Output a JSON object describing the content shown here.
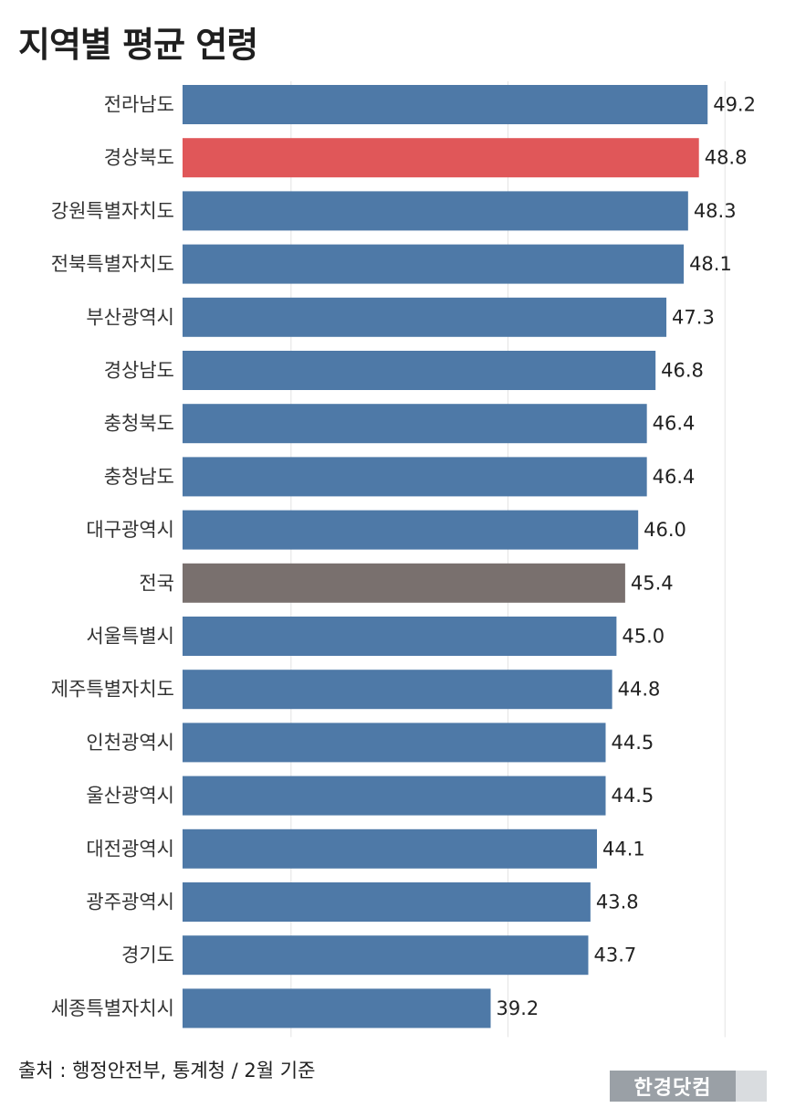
{
  "header": {
    "title": "지역별 평균 연령"
  },
  "colors": {
    "default": "#4e79a7",
    "highlight": "#e05759",
    "national": "#79706e",
    "grid": "#e3e3e3"
  },
  "chart_data": {
    "type": "bar",
    "orientation": "horizontal",
    "title": "지역별 평균 연령",
    "xlabel": "",
    "ylabel": "",
    "xlim": [
      25,
      51
    ],
    "grid": true,
    "categories": [
      "전라남도",
      "경상북도",
      "강원특별자치도",
      "전북특별자치도",
      "부산광역시",
      "경상남도",
      "충청북도",
      "충청남도",
      "대구광역시",
      "전국",
      "서울특별시",
      "제주특별자치도",
      "인천광역시",
      "울산광역시",
      "대전광역시",
      "광주광역시",
      "경기도",
      "세종특별자치시"
    ],
    "values": [
      49.2,
      48.8,
      48.3,
      48.1,
      47.3,
      46.8,
      46.4,
      46.4,
      46.0,
      45.4,
      45.0,
      44.8,
      44.5,
      44.5,
      44.1,
      43.8,
      43.7,
      39.2
    ],
    "value_labels": [
      "49.2",
      "48.8",
      "48.3",
      "48.1",
      "47.3",
      "46.8",
      "46.4",
      "46.4",
      "46.0",
      "45.4",
      "45.0",
      "44.8",
      "44.5",
      "44.5",
      "44.1",
      "43.8",
      "43.7",
      "39.2"
    ],
    "highlight": {
      "경상북도": "highlight",
      "전국": "national"
    }
  },
  "footer": {
    "source": "출처 : 행정안전부, 통계청 / 2월 기준",
    "logo": "한경닷컴"
  }
}
